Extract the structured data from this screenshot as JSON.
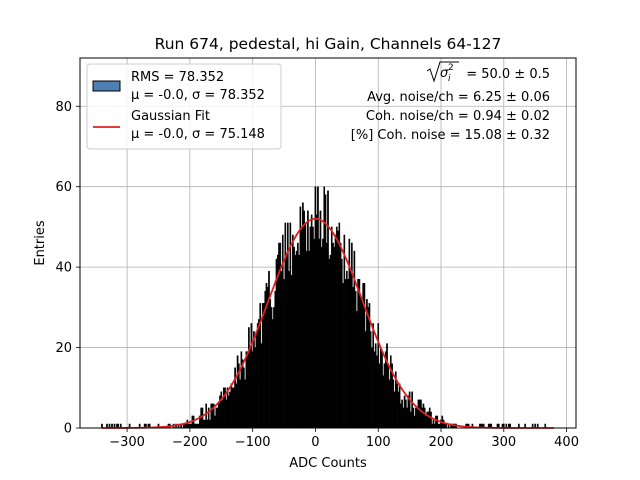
{
  "chart_data": {
    "type": "bar",
    "title": "Run 674, pedestal, hi Gain, Channels 64-127",
    "xlabel": "ADC Counts",
    "ylabel": "Entries",
    "xlim": [
      -375,
      415
    ],
    "ylim": [
      0,
      92
    ],
    "xticks": [
      -300,
      -200,
      -100,
      0,
      100,
      200,
      300,
      400
    ],
    "xtick_labels": [
      "−300",
      "−200",
      "−100",
      "0",
      "100",
      "200",
      "300",
      "400"
    ],
    "yticks": [
      0,
      20,
      40,
      60,
      80
    ],
    "ytick_labels": [
      "0",
      "20",
      "40",
      "60",
      "80"
    ],
    "grid": true,
    "legend_position": "top-left",
    "legend": [
      {
        "kind": "histogram",
        "line1": "RMS = 78.352",
        "line2": "μ = -0.0, σ = 78.352",
        "color": "#4d7fb3"
      },
      {
        "kind": "line",
        "line1": "Gaussian Fit",
        "line2": "μ = -0.0, σ = 75.148",
        "color": "#e02020"
      }
    ],
    "annotations": {
      "sigma_line": "= 50.0 ± 0.5",
      "avg_noise": "Avg. noise/ch = 6.25 ± 0.06",
      "coh_noise": "Coh. noise/ch = 0.94 ± 0.02",
      "coh_pct": "[%] Coh. noise = 15.08 ± 0.32"
    },
    "histogram": {
      "bin_width": 2,
      "x_start": -345,
      "x_end": 381,
      "series_color": "#000000",
      "sample_profile": {
        "x": [
          -340,
          -300,
          -250,
          -200,
          -150,
          -100,
          -50,
          0,
          50,
          100,
          150,
          200,
          250,
          300,
          340,
          380
        ],
        "entries": [
          1,
          1,
          2,
          5,
          11,
          21,
          38,
          52,
          40,
          22,
          11,
          5,
          2,
          1,
          1,
          1
        ]
      }
    },
    "series": [
      {
        "name": "Gaussian Fit",
        "type": "line",
        "mu": 0.0,
        "sigma": 75.148,
        "amplitude": 52,
        "color": "#e02020"
      }
    ]
  }
}
